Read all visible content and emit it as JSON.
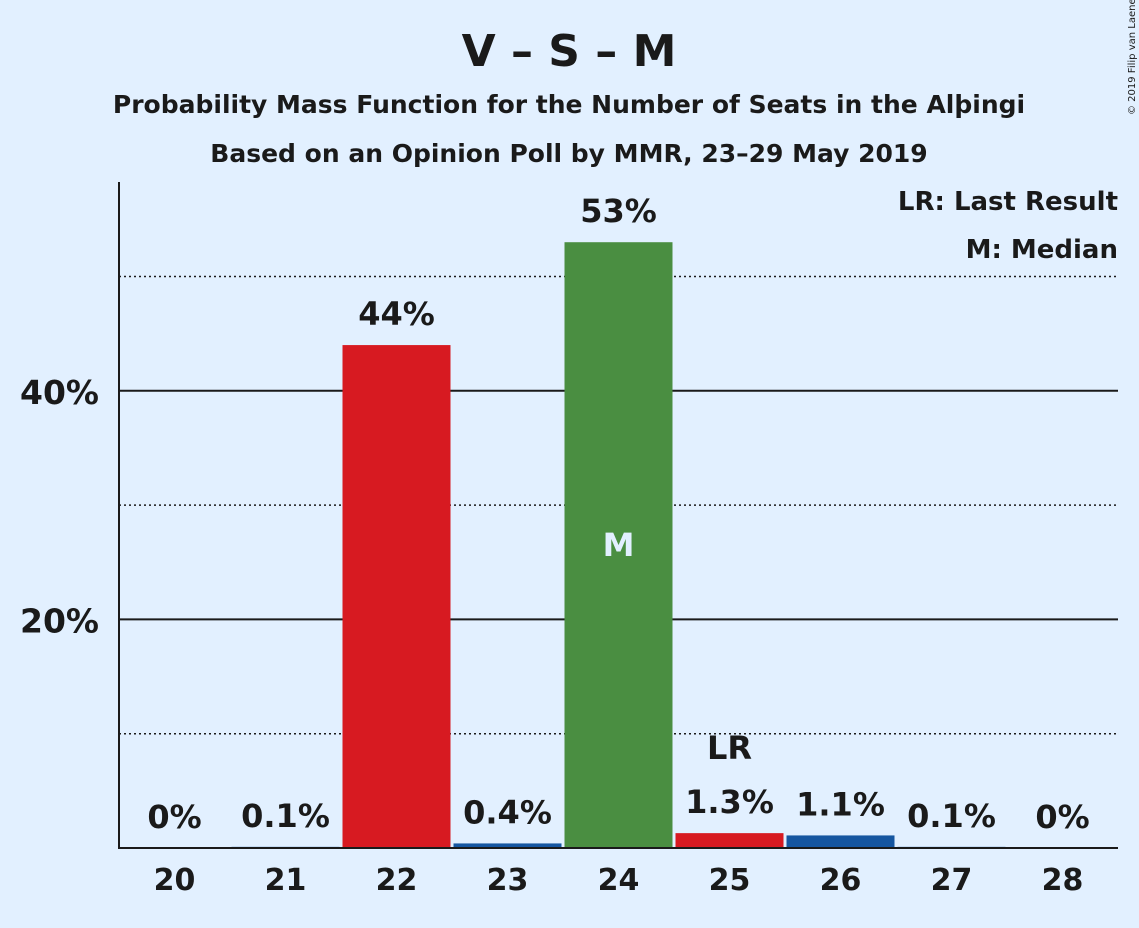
{
  "copyright": "© 2019 Filip van Laenen",
  "chart_data": {
    "type": "bar",
    "title": "V – S – M",
    "subtitle": "Probability Mass Function for the Number of Seats in the Alþingi",
    "subtitle2": "Based on an Opinion Poll by MMR, 23–29 May 2019",
    "xlabel": "",
    "ylabel": "",
    "categories": [
      "20",
      "21",
      "22",
      "23",
      "24",
      "25",
      "26",
      "27",
      "28"
    ],
    "values": [
      0,
      0.1,
      44,
      0.4,
      53,
      1.3,
      1.1,
      0.1,
      0
    ],
    "value_labels": [
      "0%",
      "0.1%",
      "44%",
      "0.4%",
      "53%",
      "1.3%",
      "1.1%",
      "0.1%",
      "0%"
    ],
    "bar_colors": [
      "#1656a0",
      "#1656a0",
      "#d71a21",
      "#1656a0",
      "#4a8e41",
      "#d71a21",
      "#1656a0",
      "#1656a0",
      "#1656a0"
    ],
    "ylim": [
      0,
      58
    ],
    "yticks": [
      20,
      40
    ],
    "ytick_labels": [
      "20%",
      "40%"
    ],
    "minor_gridlines": [
      10,
      30,
      50
    ],
    "grid": true,
    "last_result_category": "25",
    "last_result_marker": "LR",
    "median_category": "24",
    "median_marker": "M",
    "legend": [
      "LR: Last Result",
      "M: Median"
    ],
    "legend_position": "top-right",
    "colors": {
      "background": "#e2f0ff",
      "text": "#1a1a1a",
      "median_text": "#e2f0ff"
    }
  }
}
